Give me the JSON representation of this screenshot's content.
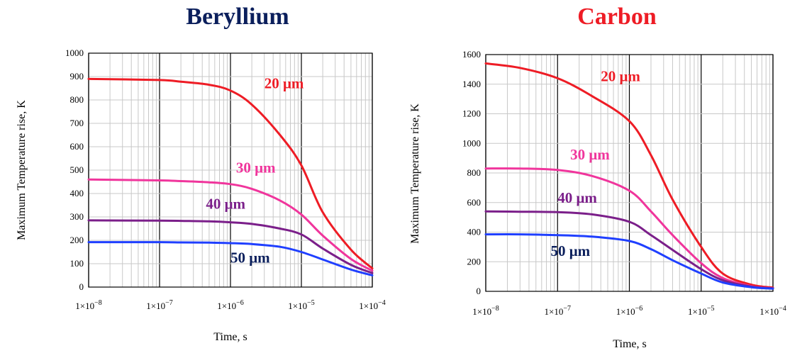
{
  "chart_data": [
    {
      "type": "line",
      "title": "Beryllium",
      "title_color": "#0b1f5c",
      "xlabel": "Time, s",
      "ylabel": "Maximum Temperature rise, K",
      "xscale": "log",
      "xlim": [
        1e-08,
        0.0001
      ],
      "ylim": [
        0,
        1000
      ],
      "y_ticks": [
        "0",
        "100",
        "200",
        "300",
        "400",
        "500",
        "600",
        "700",
        "800",
        "900",
        "1000"
      ],
      "x_ticks": [
        {
          "base": "1×10",
          "exp": "−8"
        },
        {
          "base": "1×10",
          "exp": "−7"
        },
        {
          "base": "1×10",
          "exp": "−6"
        },
        {
          "base": "1×10",
          "exp": "−5"
        },
        {
          "base": "1×10",
          "exp": "−4"
        }
      ],
      "x_tick_values": [
        1e-08,
        1e-07,
        1e-06,
        1e-05,
        0.0001
      ],
      "series": [
        {
          "name": "20 μm",
          "color": "#ee1c25",
          "x": [
            1e-08,
            1e-07,
            2e-07,
            5e-07,
            1e-06,
            2e-06,
            5e-06,
            1e-05,
            2e-05,
            5e-05,
            0.0001
          ],
          "y": [
            890,
            885,
            878,
            865,
            840,
            780,
            650,
            520,
            320,
            160,
            80
          ]
        },
        {
          "name": "30 μm",
          "color": "#f0359c",
          "x": [
            1e-08,
            1e-07,
            2e-07,
            5e-07,
            1e-06,
            2e-06,
            5e-06,
            1e-05,
            2e-05,
            5e-05,
            0.0001
          ],
          "y": [
            460,
            456,
            453,
            448,
            440,
            420,
            370,
            310,
            220,
            120,
            70
          ]
        },
        {
          "name": "40 μm",
          "color": "#7b1f8a",
          "x": [
            1e-08,
            1e-07,
            2e-07,
            5e-07,
            1e-06,
            2e-06,
            5e-06,
            1e-05,
            2e-05,
            5e-05,
            0.0001
          ],
          "y": [
            285,
            284,
            283,
            281,
            277,
            270,
            250,
            225,
            165,
            95,
            60
          ]
        },
        {
          "name": "50 μm",
          "color": "#1f3fff",
          "x": [
            1e-08,
            1e-07,
            2e-07,
            5e-07,
            1e-06,
            2e-06,
            5e-06,
            1e-05,
            2e-05,
            5e-05,
            0.0001
          ],
          "y": [
            192,
            192,
            191,
            190,
            188,
            184,
            172,
            150,
            118,
            75,
            50
          ]
        }
      ],
      "labels": [
        {
          "text": "20 μm",
          "color": "#ee1c25",
          "x": 3e-06,
          "y": 850
        },
        {
          "text": "30 μm",
          "color": "#f0359c",
          "x": 1.2e-06,
          "y": 490
        },
        {
          "text": "40 μm",
          "color": "#7b1f8a",
          "x": 4.5e-07,
          "y": 335
        },
        {
          "text": "50 μm",
          "color": "#0b1f5c",
          "x": 1e-06,
          "y": 105
        }
      ]
    },
    {
      "type": "line",
      "title": "Carbon",
      "title_color": "#ee1c25",
      "xlabel": "Time, s",
      "ylabel": "Maximum Temperature rise, K",
      "xscale": "log",
      "xlim": [
        1e-08,
        0.0001
      ],
      "ylim": [
        0,
        1600
      ],
      "y_ticks": [
        "0",
        "200",
        "400",
        "600",
        "800",
        "1000",
        "1200",
        "1400",
        "1600"
      ],
      "x_ticks": [
        {
          "base": "1×10",
          "exp": "−8"
        },
        {
          "base": "1×10",
          "exp": "−7"
        },
        {
          "base": "1×10",
          "exp": "−6"
        },
        {
          "base": "1×10",
          "exp": "−5"
        },
        {
          "base": "1×10",
          "exp": "−4"
        }
      ],
      "x_tick_values": [
        1e-08,
        1e-07,
        1e-06,
        1e-05,
        0.0001
      ],
      "series": [
        {
          "name": "20 μm",
          "color": "#ee1c25",
          "x": [
            1e-08,
            3e-08,
            1e-07,
            3e-07,
            1e-06,
            2e-06,
            4e-06,
            1e-05,
            2e-05,
            5e-05,
            0.0001
          ],
          "y": [
            1540,
            1510,
            1440,
            1320,
            1150,
            920,
            620,
            300,
            120,
            45,
            25
          ]
        },
        {
          "name": "30 μm",
          "color": "#f0359c",
          "x": [
            1e-08,
            3e-08,
            1e-07,
            3e-07,
            1e-06,
            2e-06,
            4e-06,
            1e-05,
            2e-05,
            5e-05,
            0.0001
          ],
          "y": [
            830,
            830,
            820,
            780,
            680,
            540,
            380,
            190,
            90,
            35,
            20
          ]
        },
        {
          "name": "40 μm",
          "color": "#7b1f8a",
          "x": [
            1e-08,
            3e-08,
            1e-07,
            3e-07,
            1e-06,
            2e-06,
            4e-06,
            1e-05,
            2e-05,
            5e-05,
            0.0001
          ],
          "y": [
            540,
            538,
            535,
            520,
            470,
            380,
            280,
            150,
            75,
            32,
            20
          ]
        },
        {
          "name": "50 μm",
          "color": "#1f3fff",
          "x": [
            1e-08,
            3e-08,
            1e-07,
            3e-07,
            1e-06,
            2e-06,
            4e-06,
            1e-05,
            2e-05,
            5e-05,
            0.0001
          ],
          "y": [
            385,
            385,
            380,
            370,
            340,
            285,
            210,
            120,
            60,
            28,
            18
          ]
        }
      ],
      "labels": [
        {
          "text": "20 μm",
          "color": "#ee1c25",
          "x": 4e-07,
          "y": 1420
        },
        {
          "text": "30 μm",
          "color": "#f0359c",
          "x": 1.5e-07,
          "y": 890
        },
        {
          "text": "40 μm",
          "color": "#7b1f8a",
          "x": 1e-07,
          "y": 600
        },
        {
          "text": "50 μm",
          "color": "#0b1f5c",
          "x": 8e-08,
          "y": 240
        }
      ]
    }
  ]
}
